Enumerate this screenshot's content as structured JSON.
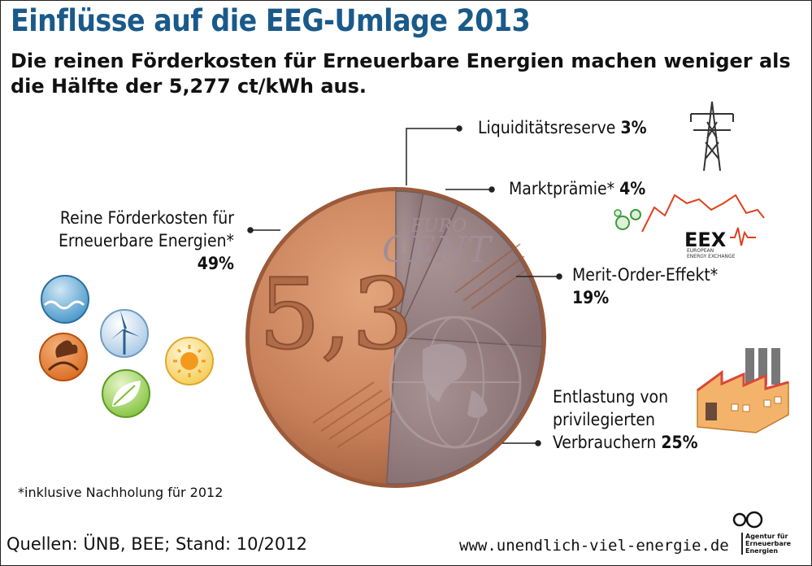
{
  "title": "Einflüsse auf die EEG-Umlage 2013",
  "subtitle": "Die reinen Förderkosten für Erneuerbare Energien machen weniger als die Hälfte der 5,277 ct/kWh aus.",
  "chart_data": {
    "type": "pie",
    "slices": [
      {
        "label": "Reine Förderkosten für Erneuerbare Energien*",
        "value": 49,
        "value_label": "49%"
      },
      {
        "label": "Liquiditätsreserve",
        "value": 3,
        "value_label": "3%"
      },
      {
        "label": "Marktprämie*",
        "value": 4,
        "value_label": "4%"
      },
      {
        "label": "Merit-Order-Effekt*",
        "value": 19,
        "value_label": "19%"
      },
      {
        "label": "Entlastung von privilegierten Verbrauchern",
        "value": 25,
        "value_label": "25%"
      }
    ]
  },
  "labels": {
    "foerder_line1": "Reine Förderkosten für",
    "foerder_line2": "Erneuerbare Energien*",
    "foerder_pct": "49%",
    "liq_text": "Liquiditätsreserve ",
    "liq_pct": "3%",
    "markt_text": "Marktprämie* ",
    "markt_pct": "4%",
    "merit_text": "Merit-Order-Effekt*",
    "merit_pct": "19%",
    "entl_line1": "Entlastung von",
    "entl_line2": "privilegierten",
    "entl_line3": "Verbrauchern ",
    "entl_pct": "25%"
  },
  "coin": {
    "value_text": "5,3",
    "euro_text": "EURO",
    "cent_text": "CENT",
    "colors": {
      "copper": "#c8815a",
      "copper_dark": "#8a5034",
      "grey_overlay": "#8c7c82"
    }
  },
  "eex": {
    "logo_text": "EEX",
    "sub_text": "EUROPEAN\nENERGY EXCHANGE"
  },
  "icons": [
    "water-icon",
    "wind-turbine-icon",
    "geothermal-icon",
    "sun-icon",
    "leaf-icon",
    "power-pylon-icon",
    "factory-icon",
    "market-chart-icon"
  ],
  "footnote": "*inklusive Nachholung für 2012",
  "source": "Quellen: ÜNB, BEE; Stand: 10/2012",
  "url": "www.unendlich-viel-energie.de",
  "agentur": "Agentur für\nErneuerbare\nEnergien"
}
